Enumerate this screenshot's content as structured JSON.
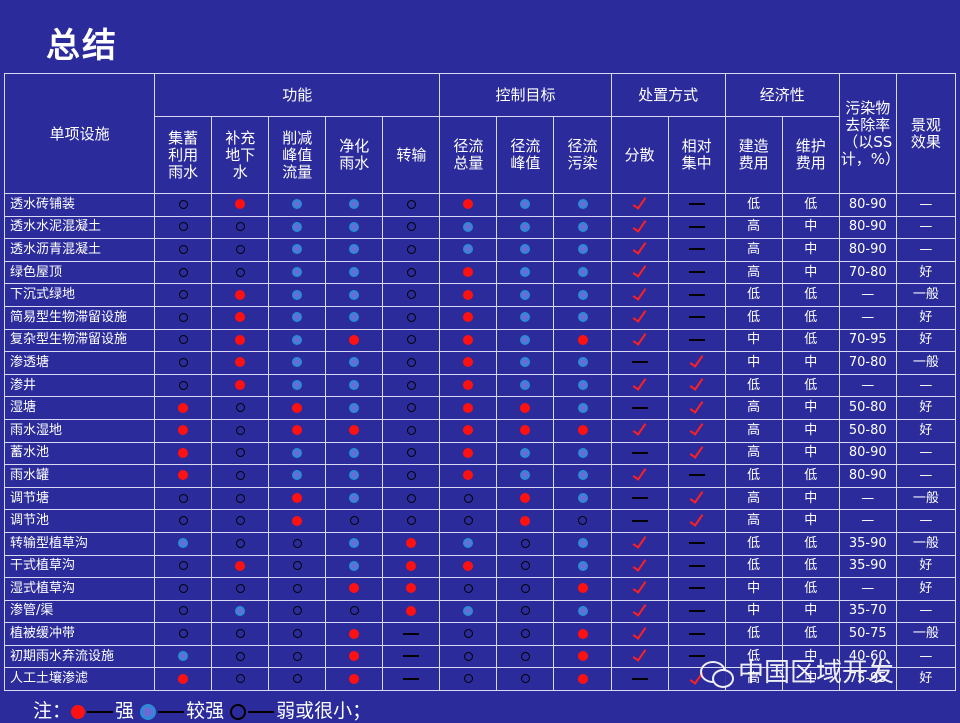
{
  "title": "总结",
  "header": {
    "facility": "单项设施",
    "groups": [
      "功能",
      "控制目标",
      "处置方式",
      "经济性"
    ],
    "removal": "污染物去除率（以SS计，%）",
    "landscape": "景观效果",
    "sub": [
      "集蓄利用雨水",
      "补充地下水",
      "削减峰值流量",
      "净化雨水",
      "转输",
      "径流总量",
      "径流峰值",
      "径流污染",
      "分散",
      "相对集中",
      "建造费用",
      "维护费用"
    ]
  },
  "rows": [
    {
      "name": "透水砖铺装",
      "f": [
        "w",
        "s",
        "m",
        "m",
        "w"
      ],
      "c": [
        "s",
        "m",
        "m"
      ],
      "d": [
        "v",
        "-"
      ],
      "cost": "低",
      "maint": "低",
      "rate": "80-90",
      "land": "—"
    },
    {
      "name": "透水水泥混凝土",
      "f": [
        "w",
        "w",
        "m",
        "m",
        "w"
      ],
      "c": [
        "m",
        "m",
        "m"
      ],
      "d": [
        "v",
        "-"
      ],
      "cost": "高",
      "maint": "中",
      "rate": "80-90",
      "land": "—"
    },
    {
      "name": "透水沥青混凝土",
      "f": [
        "w",
        "w",
        "m",
        "m",
        "w"
      ],
      "c": [
        "m",
        "m",
        "m"
      ],
      "d": [
        "v",
        "-"
      ],
      "cost": "高",
      "maint": "中",
      "rate": "80-90",
      "land": "—"
    },
    {
      "name": "绿色屋顶",
      "f": [
        "w",
        "w",
        "m",
        "m",
        "w"
      ],
      "c": [
        "s",
        "m",
        "m"
      ],
      "d": [
        "v",
        "-"
      ],
      "cost": "高",
      "maint": "中",
      "rate": "70-80",
      "land": "好"
    },
    {
      "name": "下沉式绿地",
      "f": [
        "w",
        "s",
        "m",
        "m",
        "w"
      ],
      "c": [
        "s",
        "m",
        "m"
      ],
      "d": [
        "v",
        "-"
      ],
      "cost": "低",
      "maint": "低",
      "rate": "—",
      "land": "一般"
    },
    {
      "name": "简易型生物滞留设施",
      "f": [
        "w",
        "s",
        "m",
        "m",
        "w"
      ],
      "c": [
        "s",
        "m",
        "m"
      ],
      "d": [
        "v",
        "-"
      ],
      "cost": "低",
      "maint": "低",
      "rate": "—",
      "land": "好"
    },
    {
      "name": "复杂型生物滞留设施",
      "f": [
        "w",
        "s",
        "m",
        "s",
        "w"
      ],
      "c": [
        "s",
        "m",
        "s"
      ],
      "d": [
        "v",
        "-"
      ],
      "cost": "中",
      "maint": "低",
      "rate": "70-95",
      "land": "好"
    },
    {
      "name": "渗透塘",
      "f": [
        "w",
        "s",
        "m",
        "m",
        "w"
      ],
      "c": [
        "s",
        "m",
        "m"
      ],
      "d": [
        "-",
        "v"
      ],
      "cost": "中",
      "maint": "中",
      "rate": "70-80",
      "land": "一般"
    },
    {
      "name": "渗井",
      "f": [
        "w",
        "s",
        "m",
        "m",
        "w"
      ],
      "c": [
        "s",
        "m",
        "m"
      ],
      "d": [
        "v",
        "v"
      ],
      "cost": "低",
      "maint": "低",
      "rate": "—",
      "land": "—"
    },
    {
      "name": "湿塘",
      "f": [
        "s",
        "w",
        "s",
        "m",
        "w"
      ],
      "c": [
        "s",
        "s",
        "m"
      ],
      "d": [
        "-",
        "v"
      ],
      "cost": "高",
      "maint": "中",
      "rate": "50-80",
      "land": "好"
    },
    {
      "name": "雨水湿地",
      "f": [
        "s",
        "w",
        "s",
        "s",
        "w"
      ],
      "c": [
        "s",
        "s",
        "s"
      ],
      "d": [
        "v",
        "v"
      ],
      "cost": "高",
      "maint": "中",
      "rate": "50-80",
      "land": "好"
    },
    {
      "name": "蓄水池",
      "f": [
        "s",
        "w",
        "m",
        "m",
        "w"
      ],
      "c": [
        "s",
        "m",
        "m"
      ],
      "d": [
        "-",
        "v"
      ],
      "cost": "高",
      "maint": "中",
      "rate": "80-90",
      "land": "—"
    },
    {
      "name": "雨水罐",
      "f": [
        "s",
        "w",
        "m",
        "m",
        "w"
      ],
      "c": [
        "s",
        "m",
        "m"
      ],
      "d": [
        "v",
        "-"
      ],
      "cost": "低",
      "maint": "低",
      "rate": "80-90",
      "land": "—"
    },
    {
      "name": "调节塘",
      "f": [
        "w",
        "w",
        "s",
        "m",
        "w"
      ],
      "c": [
        "w",
        "s",
        "m"
      ],
      "d": [
        "-",
        "v"
      ],
      "cost": "高",
      "maint": "中",
      "rate": "—",
      "land": "一般"
    },
    {
      "name": "调节池",
      "f": [
        "w",
        "w",
        "s",
        "w",
        "w"
      ],
      "c": [
        "w",
        "s",
        "w"
      ],
      "d": [
        "-",
        "v"
      ],
      "cost": "高",
      "maint": "中",
      "rate": "—",
      "land": "—"
    },
    {
      "name": "转输型植草沟",
      "f": [
        "m",
        "w",
        "w",
        "m",
        "s"
      ],
      "c": [
        "m",
        "w",
        "m"
      ],
      "d": [
        "v",
        "-"
      ],
      "cost": "低",
      "maint": "低",
      "rate": "35-90",
      "land": "一般"
    },
    {
      "name": "干式植草沟",
      "f": [
        "w",
        "s",
        "w",
        "m",
        "s"
      ],
      "c": [
        "s",
        "w",
        "m"
      ],
      "d": [
        "v",
        "-"
      ],
      "cost": "低",
      "maint": "低",
      "rate": "35-90",
      "land": "好"
    },
    {
      "name": "湿式植草沟",
      "f": [
        "w",
        "w",
        "w",
        "s",
        "s"
      ],
      "c": [
        "w",
        "w",
        "s"
      ],
      "d": [
        "v",
        "-"
      ],
      "cost": "中",
      "maint": "低",
      "rate": "—",
      "land": "好"
    },
    {
      "name": "渗管/渠",
      "f": [
        "w",
        "m",
        "w",
        "w",
        "s"
      ],
      "c": [
        "m",
        "w",
        "m"
      ],
      "d": [
        "v",
        "-"
      ],
      "cost": "中",
      "maint": "中",
      "rate": "35-70",
      "land": "—"
    },
    {
      "name": "植被缓冲带",
      "f": [
        "w",
        "w",
        "w",
        "s",
        "-"
      ],
      "c": [
        "w",
        "w",
        "s"
      ],
      "d": [
        "v",
        "-"
      ],
      "cost": "低",
      "maint": "低",
      "rate": "50-75",
      "land": "一般"
    },
    {
      "name": "初期雨水弃流设施",
      "f": [
        "m",
        "w",
        "w",
        "s",
        "-"
      ],
      "c": [
        "w",
        "w",
        "s"
      ],
      "d": [
        "v",
        "-"
      ],
      "cost": "低",
      "maint": "中",
      "rate": "40-60",
      "land": "—"
    },
    {
      "name": "人工土壤渗滤",
      "f": [
        "s",
        "w",
        "w",
        "s",
        "-"
      ],
      "c": [
        "w",
        "w",
        "s"
      ],
      "d": [
        "-",
        "v"
      ],
      "cost": "高",
      "maint": "中",
      "rate": "75-95",
      "land": "好"
    }
  ],
  "legend": {
    "note": "注：",
    "strong": "强",
    "mid": "较强",
    "weak": "弱或很小；"
  },
  "watermark": "中国区域开发"
}
